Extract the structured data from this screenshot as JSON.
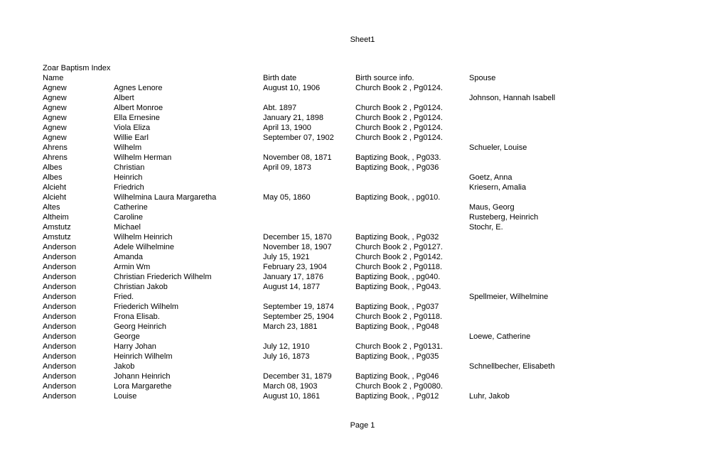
{
  "sheet_title": "Sheet1",
  "index_title": "Zoar Baptism Index",
  "footer": "Page 1",
  "headers": {
    "name": "Name",
    "birth_date": "Birth date",
    "birth_source": "Birth source info.",
    "spouse": "Spouse"
  },
  "rows": [
    {
      "surname": "Agnew",
      "given": "Agnes Lenore",
      "birth": "August 10, 1906",
      "source": "Church Book 2 , Pg0124.",
      "spouse": ""
    },
    {
      "surname": "Agnew",
      "given": "Albert",
      "birth": "",
      "source": "",
      "spouse": "Johnson, Hannah Isabell"
    },
    {
      "surname": "Agnew",
      "given": "Albert Monroe",
      "birth": "Abt. 1897",
      "source": "Church Book 2 , Pg0124.",
      "spouse": ""
    },
    {
      "surname": "Agnew",
      "given": "Ella Ernesine",
      "birth": "January 21, 1898",
      "source": "Church Book 2 , Pg0124.",
      "spouse": ""
    },
    {
      "surname": "Agnew",
      "given": "Viola Eliza",
      "birth": "April 13, 1900",
      "source": "Church Book 2 , Pg0124.",
      "spouse": ""
    },
    {
      "surname": "Agnew",
      "given": "Willie Earl",
      "birth": "September 07, 1902",
      "source": "Church Book 2 , Pg0124.",
      "spouse": ""
    },
    {
      "surname": "Ahrens",
      "given": "Wilhelm",
      "birth": "",
      "source": "",
      "spouse": "Schueler, Louise"
    },
    {
      "surname": "Ahrens",
      "given": "Wilhelm Herman",
      "birth": "November 08, 1871",
      "source": "Baptizing Book,  , Pg033.",
      "spouse": ""
    },
    {
      "surname": "Albes",
      "given": "Christian",
      "birth": "April 09, 1873",
      "source": "Baptizing Book,  , Pg036",
      "spouse": ""
    },
    {
      "surname": "Albes",
      "given": "Heinrich",
      "birth": "",
      "source": "",
      "spouse": "Goetz, Anna"
    },
    {
      "surname": "Alcieht",
      "given": "Friedrich",
      "birth": "",
      "source": "",
      "spouse": "Kriesern, Amalia"
    },
    {
      "surname": "Alcieht",
      "given": "Wilhelmina Laura Margaretha",
      "birth": "May 05, 1860",
      "source": "Baptizing Book,  , pg010.",
      "spouse": ""
    },
    {
      "surname": "Altes",
      "given": "Catherine",
      "birth": "",
      "source": "",
      "spouse": "Maus, Georg"
    },
    {
      "surname": "Altheim",
      "given": "Caroline",
      "birth": "",
      "source": "",
      "spouse": "Rusteberg, Heinrich"
    },
    {
      "surname": "Amstutz",
      "given": "Michael",
      "birth": "",
      "source": "",
      "spouse": "Stochr, E."
    },
    {
      "surname": "Amstutz",
      "given": "Wilhelm Heinrich",
      "birth": "December 15, 1870",
      "source": "Baptizing Book,  , Pg032",
      "spouse": ""
    },
    {
      "surname": "Anderson",
      "given": "Adele Wilhelmine",
      "birth": "November 18, 1907",
      "source": "Church Book 2 , Pg0127.",
      "spouse": ""
    },
    {
      "surname": "Anderson",
      "given": "Amanda",
      "birth": "July 15, 1921",
      "source": "Church Book 2 , Pg0142.",
      "spouse": ""
    },
    {
      "surname": "Anderson",
      "given": "Armin Wm",
      "birth": "February 23, 1904",
      "source": "Church Book 2 , Pg0118.",
      "spouse": ""
    },
    {
      "surname": "Anderson",
      "given": "Christian Friederich Wilhelm",
      "birth": "January 17, 1876",
      "source": "Baptizing Book,  , pg040.",
      "spouse": ""
    },
    {
      "surname": "Anderson",
      "given": "Christian Jakob",
      "birth": "August 14, 1877",
      "source": "Baptizing Book,  , Pg043.",
      "spouse": ""
    },
    {
      "surname": "Anderson",
      "given": "Fried.",
      "birth": "",
      "source": "",
      "spouse": "Spellmeier, Wilhelmine"
    },
    {
      "surname": "Anderson",
      "given": "Friederich Wilhelm",
      "birth": "September 19, 1874",
      "source": "Baptizing Book,  , Pg037",
      "spouse": ""
    },
    {
      "surname": "Anderson",
      "given": "Frona Elisab.",
      "birth": "September 25, 1904",
      "source": "Church Book 2 , Pg0118.",
      "spouse": ""
    },
    {
      "surname": "Anderson",
      "given": "Georg Heinrich",
      "birth": "March 23, 1881",
      "source": "Baptizing Book,  , Pg048",
      "spouse": ""
    },
    {
      "surname": "Anderson",
      "given": "George",
      "birth": "",
      "source": "",
      "spouse": "Loewe, Catherine"
    },
    {
      "surname": "Anderson",
      "given": "Harry Johan",
      "birth": "July 12, 1910",
      "source": "Church Book 2 , Pg0131.",
      "spouse": ""
    },
    {
      "surname": "Anderson",
      "given": "Heinrich Wilhelm",
      "birth": "July 16, 1873",
      "source": "Baptizing Book,  , Pg035",
      "spouse": ""
    },
    {
      "surname": "Anderson",
      "given": "Jakob",
      "birth": "",
      "source": "",
      "spouse": "Schnellbecher, Elisabeth"
    },
    {
      "surname": "Anderson",
      "given": "Johann Heinrich",
      "birth": "December 31, 1879",
      "source": "Baptizing Book,  , Pg046",
      "spouse": ""
    },
    {
      "surname": "Anderson",
      "given": "Lora Margarethe",
      "birth": "March 08, 1903",
      "source": "Church Book 2 , Pg0080.",
      "spouse": ""
    },
    {
      "surname": "Anderson",
      "given": "Louise",
      "birth": "August 10, 1861",
      "source": "Baptizing Book,  , Pg012",
      "spouse": "Luhr, Jakob"
    }
  ]
}
